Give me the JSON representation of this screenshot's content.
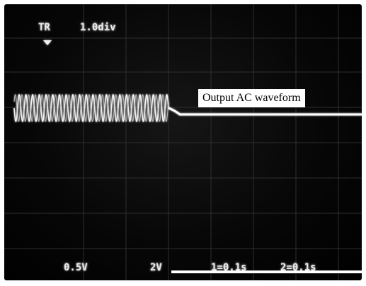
{
  "oscilloscope": {
    "trigger_label": "TR",
    "timebase_label": "1.0div",
    "channel1_scale": "0.5V",
    "channel2_scale": "2V",
    "channel1_time": "1=0.1s",
    "channel2_time": "2=0.1s"
  },
  "annotation": {
    "label": "Output AC waveform"
  },
  "colors": {
    "screen_background": "#000000",
    "trace": "#ffffff",
    "graticule": "#3a3a3a"
  },
  "icons": {
    "trigger_marker": "trigger-marker-icon"
  }
}
